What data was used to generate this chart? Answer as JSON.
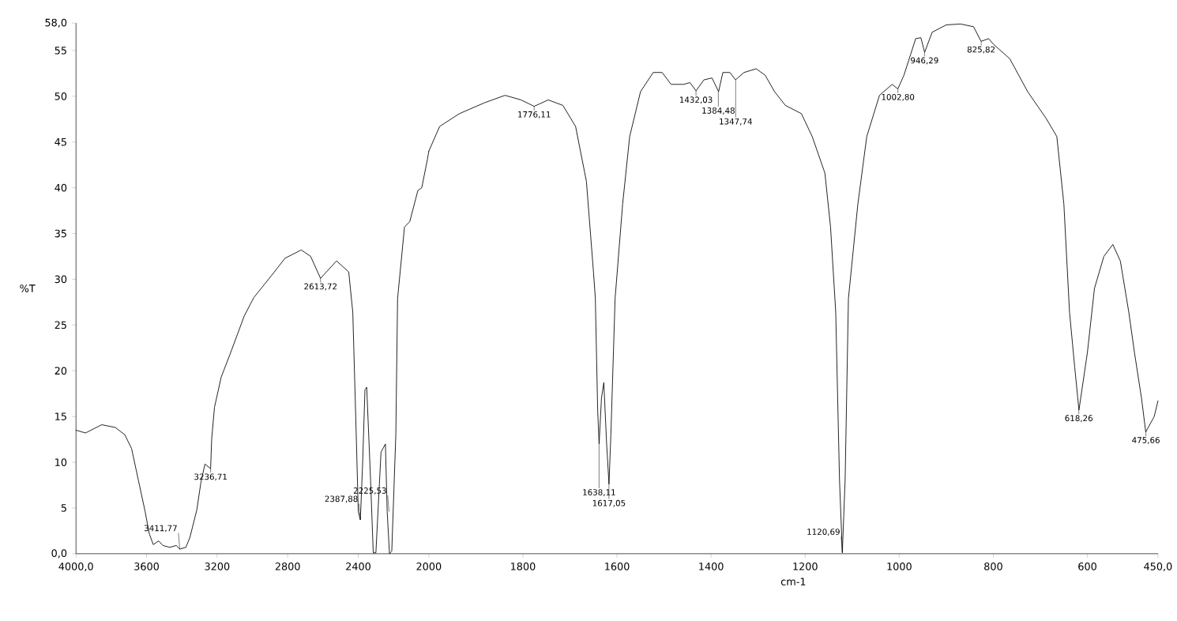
{
  "chart_data": [
    {
      "type": "line",
      "ylabel": "%T",
      "color": "#000000",
      "x": [
        4000,
        3946,
        3854,
        3777,
        3723,
        3685,
        3646,
        3608,
        3585,
        3562,
        3531,
        3508,
        3469,
        3431,
        3412,
        3377,
        3354,
        3315,
        3292,
        3269,
        3237,
        3231,
        3215,
        3177,
        3123,
        3046,
        2992,
        2892,
        2815,
        2723,
        2670,
        2614,
        2523,
        2454,
        2431,
        2410,
        2400,
        2388,
        2375,
        2362,
        2352,
        2330,
        2315,
        2300,
        2271,
        2246,
        2236,
        2223,
        2210,
        2187,
        2177,
        2138,
        2108,
        2062,
        2040,
        2008,
        2000
      ],
      "values": [
        13.5,
        13.2,
        14.1,
        13.8,
        13.0,
        11.5,
        8.0,
        4.6,
        2.2,
        1.0,
        1.4,
        0.9,
        0.7,
        0.9,
        0.5,
        0.7,
        1.8,
        4.8,
        7.8,
        9.8,
        9.3,
        12.5,
        16.0,
        19.3,
        22.0,
        26.0,
        28.0,
        30.4,
        32.3,
        33.2,
        32.5,
        30.1,
        32.0,
        30.8,
        26.4,
        12.0,
        4.6,
        3.7,
        10.0,
        17.9,
        18.2,
        8.0,
        0.1,
        0.1,
        11.1,
        12.0,
        4.6,
        0.0,
        0.3,
        13.0,
        27.9,
        35.7,
        36.3,
        39.7,
        40.0,
        43.1,
        44.0
      ],
      "xlim": [
        4000,
        2000
      ],
      "xticks": [
        {
          "value": 4000,
          "label": "4000,0"
        },
        3600,
        3200,
        2800,
        2400
      ],
      "ylim": [
        0,
        58
      ],
      "yticks": [
        {
          "value": 0,
          "label": "0,0"
        },
        5,
        10,
        15,
        20,
        25,
        30,
        35,
        40,
        45,
        50,
        55,
        {
          "value": 58,
          "label": "58,0"
        }
      ],
      "annotations": [
        {
          "text": "3411,77",
          "x": 3411.77,
          "y": 0.5
        },
        {
          "text": "3236,71",
          "x": 3236.71,
          "y": 9.3
        },
        {
          "text": "2613,72",
          "x": 2613.72,
          "y": 30.1
        },
        {
          "text": "2387,88",
          "x": 2387.88,
          "y": 3.7
        },
        {
          "text": "2225,53",
          "x": 2225.53,
          "y": 4.6
        }
      ]
    },
    {
      "type": "line",
      "xlabel": "cm-1",
      "color": "#000000",
      "tick_labels": "x",
      "x": [
        2000,
        1977,
        1935,
        1881,
        1838,
        1804,
        1776,
        1746,
        1715,
        1688,
        1665,
        1650,
        1646,
        1641,
        1638,
        1633,
        1628,
        1622,
        1617,
        1613,
        1604,
        1588,
        1573,
        1550,
        1523,
        1504,
        1485,
        1458,
        1445,
        1432,
        1415,
        1398,
        1384,
        1375,
        1360,
        1348,
        1330,
        1304,
        1285,
        1265,
        1242,
        1208,
        1185,
        1158,
        1146,
        1135,
        1127,
        1121,
        1115,
        1108,
        1088,
        1069,
        1042,
        1015,
        1003,
        990,
        965,
        954,
        946,
        930,
        900,
        870,
        842,
        826,
        810,
        800,
        765,
        727,
        688,
        665,
        650,
        638,
        627,
        618,
        600,
        585,
        565,
        546,
        530,
        512,
        500,
        485,
        476,
        458,
        450
      ],
      "values": [
        44.0,
        46.7,
        48.1,
        49.3,
        50.1,
        49.6,
        48.9,
        49.6,
        49.0,
        46.7,
        40.7,
        30.8,
        27.9,
        15.6,
        12.0,
        17.0,
        18.7,
        12.0,
        7.6,
        13.0,
        27.9,
        38.2,
        45.6,
        50.5,
        52.6,
        52.6,
        51.3,
        51.3,
        51.5,
        50.6,
        51.8,
        52.0,
        50.5,
        52.6,
        52.6,
        51.8,
        52.6,
        53.0,
        52.3,
        50.5,
        49.0,
        48.1,
        45.6,
        41.6,
        35.7,
        26.4,
        8.1,
        0.1,
        8.1,
        27.9,
        38.2,
        45.6,
        50.1,
        51.3,
        50.8,
        52.3,
        56.3,
        56.4,
        54.8,
        57.0,
        57.8,
        57.9,
        57.6,
        56.0,
        56.3,
        55.7,
        54.1,
        50.5,
        47.6,
        45.6,
        38.2,
        26.4,
        20.4,
        15.7,
        22.0,
        29.0,
        32.5,
        33.8,
        32.0,
        26.4,
        22.0,
        17.0,
        13.3,
        15.0,
        16.7
      ],
      "xlim": [
        2000,
        450
      ],
      "xticks": [
        2000,
        1800,
        1600,
        1400,
        1200,
        1000,
        800,
        600,
        {
          "value": 450,
          "label": "450,0"
        }
      ],
      "ylim": [
        0,
        58
      ],
      "annotations": [
        {
          "text": "1776,11",
          "x": 1776.11,
          "y": 48.9
        },
        {
          "text": "1638,11",
          "x": 1638.11,
          "y": 12.0
        },
        {
          "text": "1617,05",
          "x": 1617.05,
          "y": 7.6
        },
        {
          "text": "1432,03",
          "x": 1432.03,
          "y": 50.6
        },
        {
          "text": "1384,48",
          "x": 1384.48,
          "y": 50.5
        },
        {
          "text": "1347,74",
          "x": 1347.74,
          "y": 51.8
        },
        {
          "text": "1120,69",
          "x": 1120.69,
          "y": 0.1
        },
        {
          "text": "1002,80",
          "x": 1002.8,
          "y": 50.8
        },
        {
          "text": "946,29",
          "x": 946.29,
          "y": 54.8
        },
        {
          "text": "825,82",
          "x": 825.82,
          "y": 56.0
        },
        {
          "text": "618,26",
          "x": 618.26,
          "y": 15.7
        },
        {
          "text": "475,66",
          "x": 475.66,
          "y": 13.3
        }
      ]
    }
  ]
}
